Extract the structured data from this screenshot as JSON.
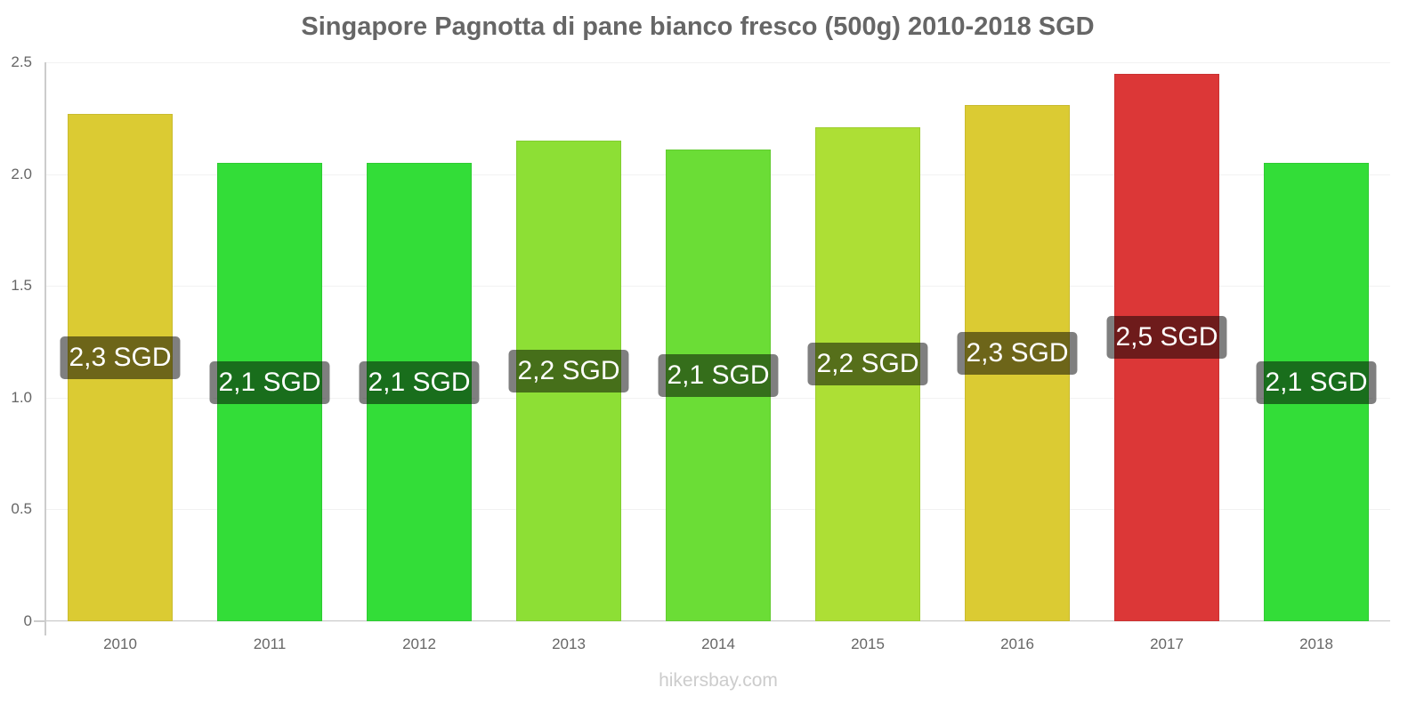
{
  "chart_data": {
    "type": "bar",
    "title": "Singapore Pagnotta di pane bianco fresco (500g) 2010-2018 SGD",
    "xlabel": "",
    "ylabel": "",
    "ylim": [
      0,
      2.5
    ],
    "yticks": [
      "0",
      "0.5",
      "1.0",
      "1.5",
      "2.0",
      "2.5"
    ],
    "grid": true,
    "legend": null,
    "categories": [
      "2010",
      "2011",
      "2012",
      "2013",
      "2014",
      "2015",
      "2016",
      "2017",
      "2018"
    ],
    "values": [
      2.27,
      2.05,
      2.05,
      2.15,
      2.11,
      2.21,
      2.31,
      2.45,
      2.05
    ],
    "data_labels": [
      "2,3 SGD",
      "2,1 SGD",
      "2,1 SGD",
      "2,2 SGD",
      "2,1 SGD",
      "2,2 SGD",
      "2,3 SGD",
      "2,5 SGD",
      "2,1 SGD"
    ],
    "colors": [
      "#dbcb33",
      "#33dd38",
      "#33dd38",
      "#8ddf35",
      "#6bdd36",
      "#addf35",
      "#dbcb33",
      "#dc3737",
      "#33dd38"
    ]
  },
  "watermark": "hikersbay.com"
}
